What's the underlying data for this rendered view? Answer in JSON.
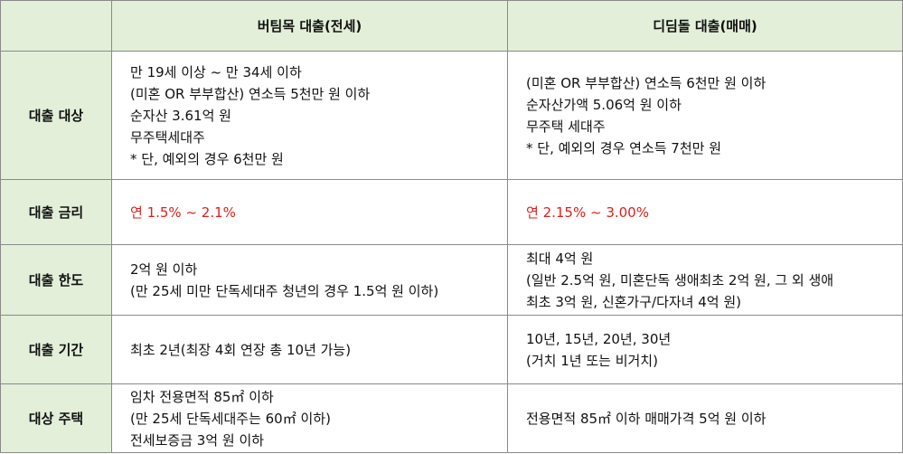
{
  "header": {
    "corner": "",
    "col1": "버팀목 대출(전세)",
    "col2": "디딤돌 대출(매매)"
  },
  "rows": [
    {
      "label": "대출 대상",
      "col1": [
        "만 19세 이상 ~ 만 34세 이하",
        "(미혼 OR 부부합산) 연소득 5천만 원 이하",
        "순자산 3.61억 원",
        "무주택세대주",
        "* 단, 예외의 경우 6천만 원"
      ],
      "col2": [
        "(미혼 OR 부부합산) 연소득 6천만 원 이하",
        "순자산가액 5.06억 원 이하",
        "무주택 세대주",
        "* 단, 예외의 경우 연소득 7천만 원"
      ]
    },
    {
      "label": "대출 금리",
      "col1": [
        "연 1.5% ~ 2.1%"
      ],
      "col2": [
        "연 2.15% ~ 3.00%"
      ],
      "value_color": "#e0201b"
    },
    {
      "label": "대출 한도",
      "col1": [
        "2억 원 이하",
        "(만 25세 미만 단독세대주 청년의 경우 1.5억 원 이하)"
      ],
      "col2": [
        "최대 4억 원",
        "(일반 2.5억 원, 미혼단독 생애최초 2억 원, 그 외 생애",
        "최초 3억 원, 신혼가구/다자녀 4억 원)"
      ]
    },
    {
      "label": "대출 기간",
      "col1": [
        "최초 2년(최장 4회 연장 총 10년 가능)"
      ],
      "col2": [
        "10년, 15년, 20년, 30년",
        "(거치 1년 또는 비거치)"
      ]
    },
    {
      "label": "대상 주택",
      "col1": [
        "임차 전용면적 85㎡ 이하",
        "(만 25세 단독세대주는 60㎡ 이하)",
        "전세보증금 3억 원 이하"
      ],
      "col2": [
        "전용면적 85㎡ 이하 매매가격 5억 원 이하"
      ]
    }
  ],
  "colors": {
    "header_bg": "#e3efd9",
    "label_bg": "#e3efd9",
    "border": "#8a8a8a",
    "highlight_text": "#e0201b"
  }
}
